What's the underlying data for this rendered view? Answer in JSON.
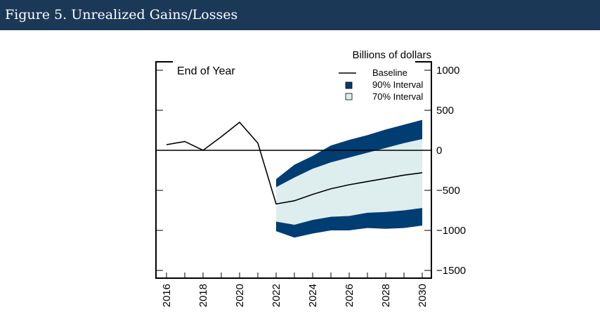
{
  "header": {
    "title": "Figure 5. Unrealized Gains/Losses"
  },
  "chart_data": {
    "type": "line",
    "title": "",
    "panel_label": "End of Year",
    "ylabel": "Billions of dollars",
    "xlim": [
      2016,
      2030
    ],
    "ylim": [
      -1600,
      1100
    ],
    "x_ticks": [
      "2016",
      "2018",
      "2020",
      "2022",
      "2024",
      "2026",
      "2028",
      "2030"
    ],
    "y_ticks": [
      1000,
      500,
      0,
      -500,
      -1000,
      -1500
    ],
    "y_tick_labels": [
      "1000",
      "500",
      "0",
      "−500",
      "−1000",
      "−1500"
    ],
    "legend_position": "top-right",
    "legend": {
      "baseline": "Baseline",
      "ci90": "90% Interval",
      "ci70": "70% Interval"
    },
    "colors": {
      "baseline": "#000000",
      "ci90": "#003d73",
      "ci70": "#deeeee"
    },
    "baseline": {
      "x": [
        2016,
        2017,
        2018,
        2019,
        2020,
        2021,
        2022,
        2023,
        2024,
        2025,
        2026,
        2027,
        2028,
        2029,
        2030
      ],
      "y": [
        70,
        110,
        0,
        170,
        350,
        90,
        -670,
        -630,
        -550,
        -480,
        -430,
        -390,
        -350,
        -310,
        -280
      ]
    },
    "ci90": {
      "x": [
        2022,
        2023,
        2024,
        2025,
        2026,
        2027,
        2028,
        2029,
        2030
      ],
      "upper": [
        -360,
        -180,
        -70,
        60,
        130,
        190,
        260,
        320,
        380
      ],
      "lower": [
        -1010,
        -1090,
        -1040,
        -1000,
        -1000,
        -970,
        -980,
        -970,
        -940
      ]
    },
    "ci70": {
      "x": [
        2022,
        2023,
        2024,
        2025,
        2026,
        2027,
        2028,
        2029,
        2030
      ],
      "upper": [
        -460,
        -340,
        -230,
        -150,
        -90,
        -30,
        30,
        90,
        140
      ],
      "lower": [
        -890,
        -930,
        -870,
        -830,
        -820,
        -780,
        -770,
        -750,
        -720
      ]
    }
  }
}
